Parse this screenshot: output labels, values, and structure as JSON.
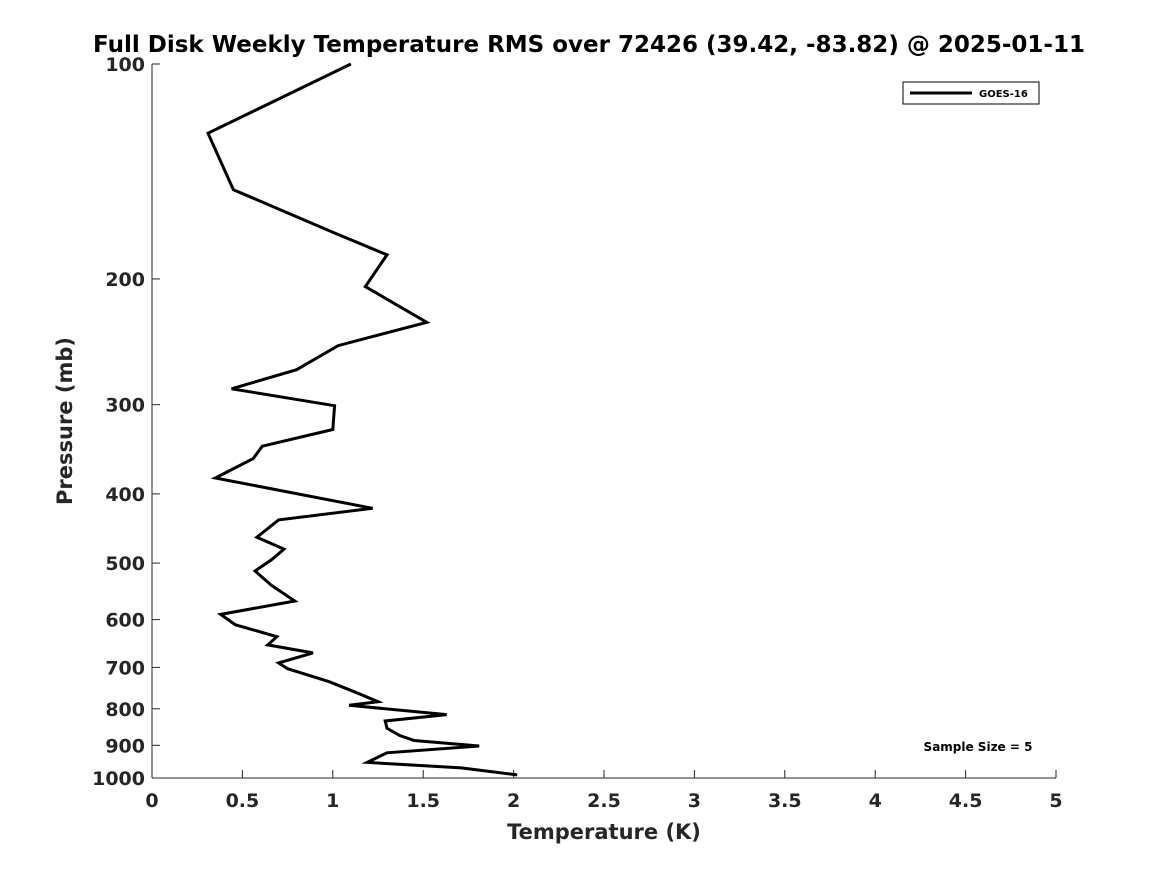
{
  "chart_data": {
    "type": "line",
    "title": "Full Disk Weekly Temperature RMS over 72426 (39.42, -83.82) @ 2025-01-11",
    "xlabel": "Temperature (K)",
    "ylabel": "Pressure (mb)",
    "xlim": [
      0,
      5
    ],
    "ylim": [
      100,
      1000
    ],
    "yscale": "log",
    "y_reversed": true,
    "x_ticks": [
      "0",
      "0.5",
      "1",
      "1.5",
      "2",
      "2.5",
      "3",
      "3.5",
      "4",
      "4.5",
      "5"
    ],
    "y_ticks": [
      "100",
      "200",
      "300",
      "400",
      "500",
      "600",
      "700",
      "800",
      "900",
      "1000"
    ],
    "grid": false,
    "legend_position": "top-right",
    "annotation": "Sample Size = 5",
    "series": [
      {
        "name": "GOES-16",
        "color": "#000000",
        "points": [
          [
            1.1,
            100
          ],
          [
            0.31,
            125
          ],
          [
            0.45,
            150
          ],
          [
            1.0,
            172
          ],
          [
            1.3,
            185
          ],
          [
            1.18,
            205
          ],
          [
            1.52,
            230
          ],
          [
            1.03,
            248
          ],
          [
            0.8,
            268
          ],
          [
            0.44,
            285
          ],
          [
            1.01,
            301
          ],
          [
            1.0,
            325
          ],
          [
            0.61,
            343
          ],
          [
            0.56,
            357
          ],
          [
            0.35,
            380
          ],
          [
            1.22,
            419
          ],
          [
            0.7,
            435
          ],
          [
            0.58,
            460
          ],
          [
            0.73,
            478
          ],
          [
            0.66,
            495
          ],
          [
            0.57,
            513
          ],
          [
            0.66,
            537
          ],
          [
            0.79,
            565
          ],
          [
            0.38,
            590
          ],
          [
            0.46,
            610
          ],
          [
            0.69,
            634
          ],
          [
            0.64,
            651
          ],
          [
            0.89,
            668
          ],
          [
            0.7,
            690
          ],
          [
            0.75,
            703
          ],
          [
            0.98,
            733
          ],
          [
            1.14,
            761
          ],
          [
            1.25,
            782
          ],
          [
            1.09,
            791
          ],
          [
            1.63,
            815
          ],
          [
            1.29,
            832
          ],
          [
            1.3,
            852
          ],
          [
            1.37,
            872
          ],
          [
            1.45,
            886
          ],
          [
            1.81,
            902
          ],
          [
            1.3,
            922
          ],
          [
            1.19,
            951
          ],
          [
            1.71,
            968
          ],
          [
            2.02,
            990
          ]
        ]
      }
    ]
  }
}
